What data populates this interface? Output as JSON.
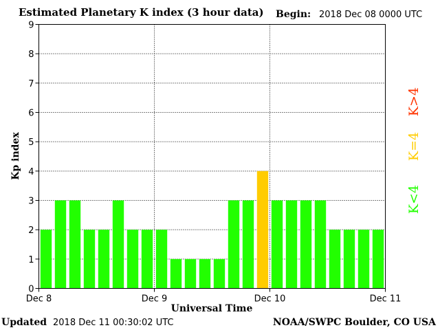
{
  "header": {
    "title": "Estimated Planetary K index (3 hour data)",
    "begin_label": "Begin:",
    "begin_value": "2018 Dec 08 0000 UTC"
  },
  "footer": {
    "updated_label": "Updated",
    "updated_value": "2018 Dec 11 00:30:02 UTC",
    "source": "NOAA/SWPC Boulder, CO USA"
  },
  "colors": {
    "below": "#22ff00",
    "equal": "#ffcc00",
    "above": "#ff3300"
  },
  "chart_data": {
    "type": "bar",
    "title": "Estimated Planetary K index (3 hour data)",
    "xlabel": "Universal Time",
    "ylabel": "Kp index",
    "ylim": [
      0,
      9
    ],
    "yticks": [
      0,
      1,
      2,
      3,
      4,
      5,
      6,
      7,
      8,
      9
    ],
    "xticks": [
      "Dec 8",
      "Dec 9",
      "Dec 10",
      "Dec 11"
    ],
    "values": [
      2,
      3,
      3,
      2,
      2,
      3,
      2,
      2,
      2,
      1,
      1,
      1,
      1,
      3,
      3,
      4,
      3,
      3,
      3,
      3,
      2,
      2,
      2,
      2
    ],
    "grid": true,
    "legend": [
      {
        "label": "K<4",
        "color": "#22ff00"
      },
      {
        "label": "K=4",
        "color": "#ffcc00"
      },
      {
        "label": "K>4",
        "color": "#ff3300"
      }
    ]
  }
}
